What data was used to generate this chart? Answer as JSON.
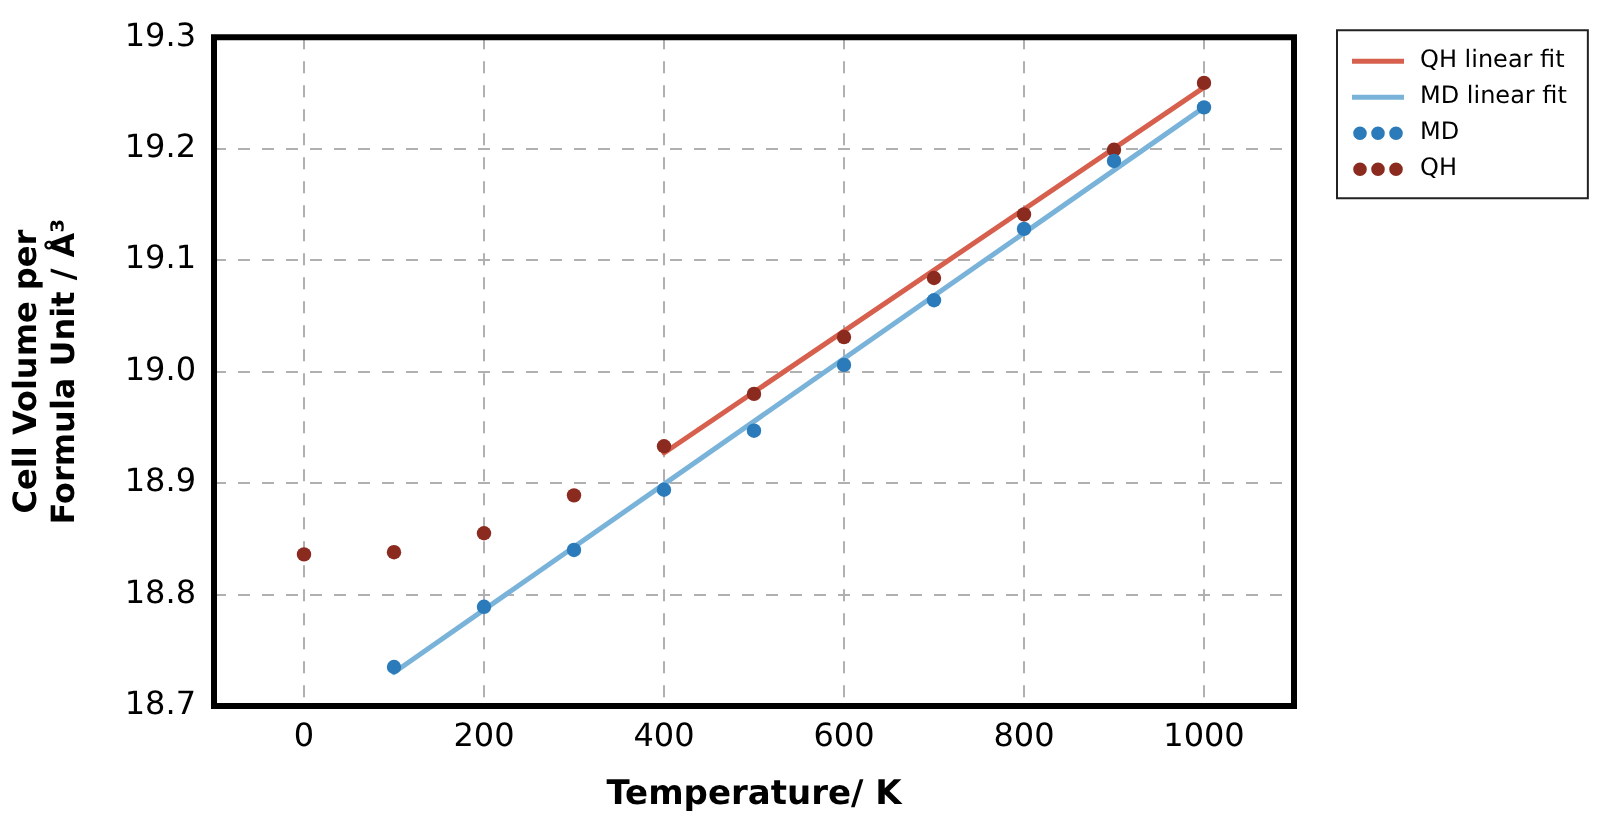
{
  "chart_data": {
    "type": "scatter",
    "xlabel": "Temperature/ K",
    "ylabel": "Cell Volume per\nFormula Unit / Å³",
    "xlim": [
      -100,
      1100
    ],
    "xticks": [
      0,
      200,
      400,
      600,
      800,
      1000
    ],
    "ylim": [
      18.7,
      19.3
    ],
    "yticks": [
      18.7,
      18.8,
      18.9,
      {
        "value": 19,
        "label": "19.0"
      },
      19.1,
      19.2,
      19.3
    ],
    "grid": true,
    "legend": "top right",
    "marker": "circle",
    "series": [
      {
        "name": "QH linear fit",
        "type": "line",
        "marker": "none",
        "color": "#d6604d",
        "x": [
          400,
          1000
        ],
        "values": [
          18.927,
          19.255
        ]
      },
      {
        "name": "MD linear fit",
        "type": "line",
        "marker": "none",
        "color": "#7ab3d9",
        "x": [
          100,
          1000
        ],
        "values": [
          18.73,
          19.237
        ]
      },
      {
        "name": "MD",
        "type": "scatter",
        "color": "#2b7bba",
        "x": [
          100,
          200,
          300,
          400,
          500,
          600,
          700,
          800,
          900,
          1000
        ],
        "values": [
          18.735,
          18.789,
          18.84,
          18.894,
          18.947,
          19.006,
          19.064,
          19.128,
          19.189,
          19.237
        ]
      },
      {
        "name": "QH",
        "type": "scatter",
        "color": "#8b2a1f",
        "x": [
          0,
          100,
          200,
          300,
          400,
          500,
          600,
          700,
          800,
          900,
          1000
        ],
        "values": [
          18.836,
          18.838,
          18.855,
          18.889,
          18.933,
          18.98,
          19.031,
          19.084,
          19.141,
          19.199,
          19.259
        ]
      }
    ]
  }
}
